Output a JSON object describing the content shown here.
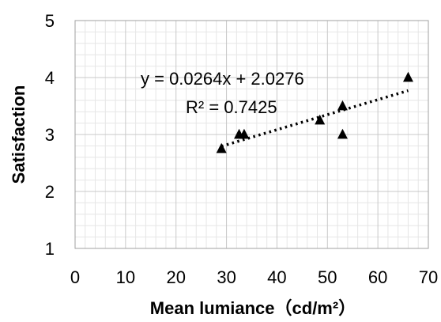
{
  "chart_data": {
    "type": "scatter",
    "xlabel": "Mean lumiance（cd/m²）",
    "ylabel": "Satisfaction",
    "xlim": [
      0,
      70
    ],
    "ylim": [
      1,
      5
    ],
    "xticks": [
      "0",
      "10",
      "20",
      "30",
      "40",
      "50",
      "60",
      "70"
    ],
    "yticks": [
      "1",
      "2",
      "3",
      "4",
      "5"
    ],
    "grid": true,
    "series": [
      {
        "marker": "triangle",
        "color": "#000000",
        "points": [
          {
            "x": 29.0,
            "y": 2.75
          },
          {
            "x": 32.5,
            "y": 3.0
          },
          {
            "x": 33.5,
            "y": 3.0
          },
          {
            "x": 48.5,
            "y": 3.25
          },
          {
            "x": 53.0,
            "y": 3.5
          },
          {
            "x": 53.0,
            "y": 3.0
          },
          {
            "x": 66.0,
            "y": 4.0
          }
        ]
      }
    ],
    "trendline": {
      "style": "dotted",
      "slope": 0.0264,
      "intercept": 2.0276,
      "x_range": [
        29.0,
        66.0
      ],
      "equation": "y = 0.0264x + 2.0276",
      "r_squared": "R² = 0.7425"
    }
  }
}
